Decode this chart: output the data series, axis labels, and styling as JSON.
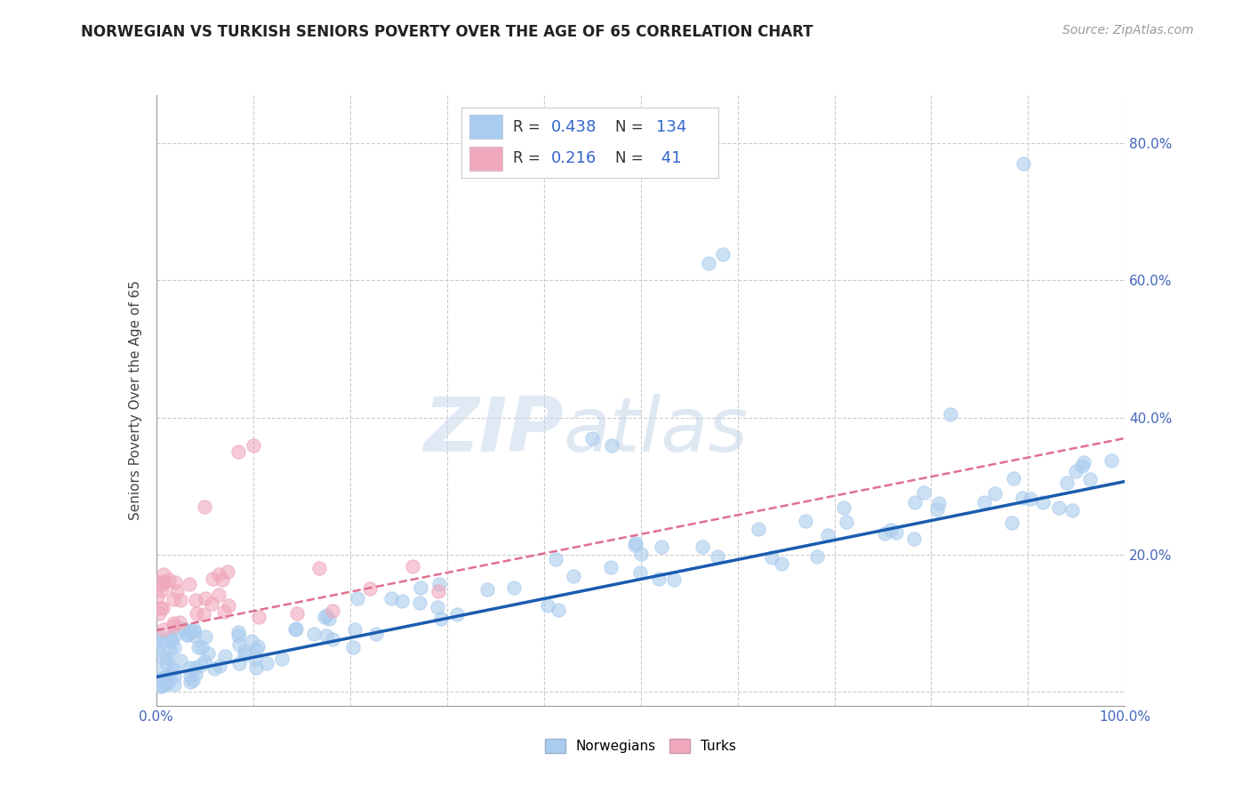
{
  "title": "NORWEGIAN VS TURKISH SENIORS POVERTY OVER THE AGE OF 65 CORRELATION CHART",
  "source": "Source: ZipAtlas.com",
  "ylabel": "Seniors Poverty Over the Age of 65",
  "xlim": [
    0,
    1
  ],
  "ylim": [
    -0.02,
    0.87
  ],
  "norwegian_color": "#aaccee",
  "norwegian_edge_color": "#aaccee",
  "turkish_color": "#f0a8bc",
  "turkish_edge_color": "#f0a8bc",
  "norwegian_line_color": "#1a5cb0",
  "turkish_line_color": "#e07090",
  "background_color": "#ffffff",
  "watermark_color": "#dce8f5",
  "nor_intercept": 0.02,
  "nor_slope": 0.28,
  "tur_intercept": 0.095,
  "tur_slope": 0.32
}
